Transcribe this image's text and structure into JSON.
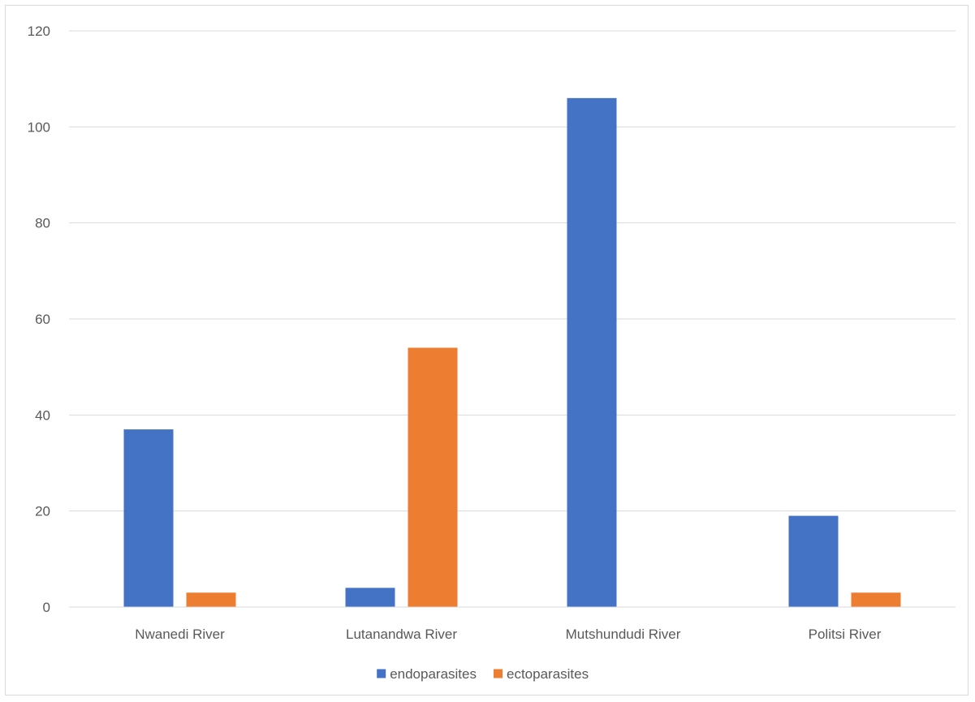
{
  "chart_data": {
    "type": "bar",
    "title": "",
    "xlabel": "",
    "ylabel": "",
    "categories": [
      "Nwanedi River",
      "Lutanandwa River",
      "Mutshundudi River",
      "Politsi River"
    ],
    "series": [
      {
        "name": "endoparasites",
        "color": "#4472c4",
        "values": [
          37,
          4,
          106,
          19
        ]
      },
      {
        "name": "ectoparasites",
        "color": "#ed7d31",
        "values": [
          3,
          54,
          0,
          3
        ]
      }
    ],
    "ylim": [
      0,
      120
    ],
    "yticks": [
      "0",
      "20",
      "40",
      "60",
      "80",
      "100",
      "120"
    ],
    "grid": true,
    "legend_position": "bottom",
    "gridline_color": "#d9d9d9",
    "text_color": "#595959"
  }
}
